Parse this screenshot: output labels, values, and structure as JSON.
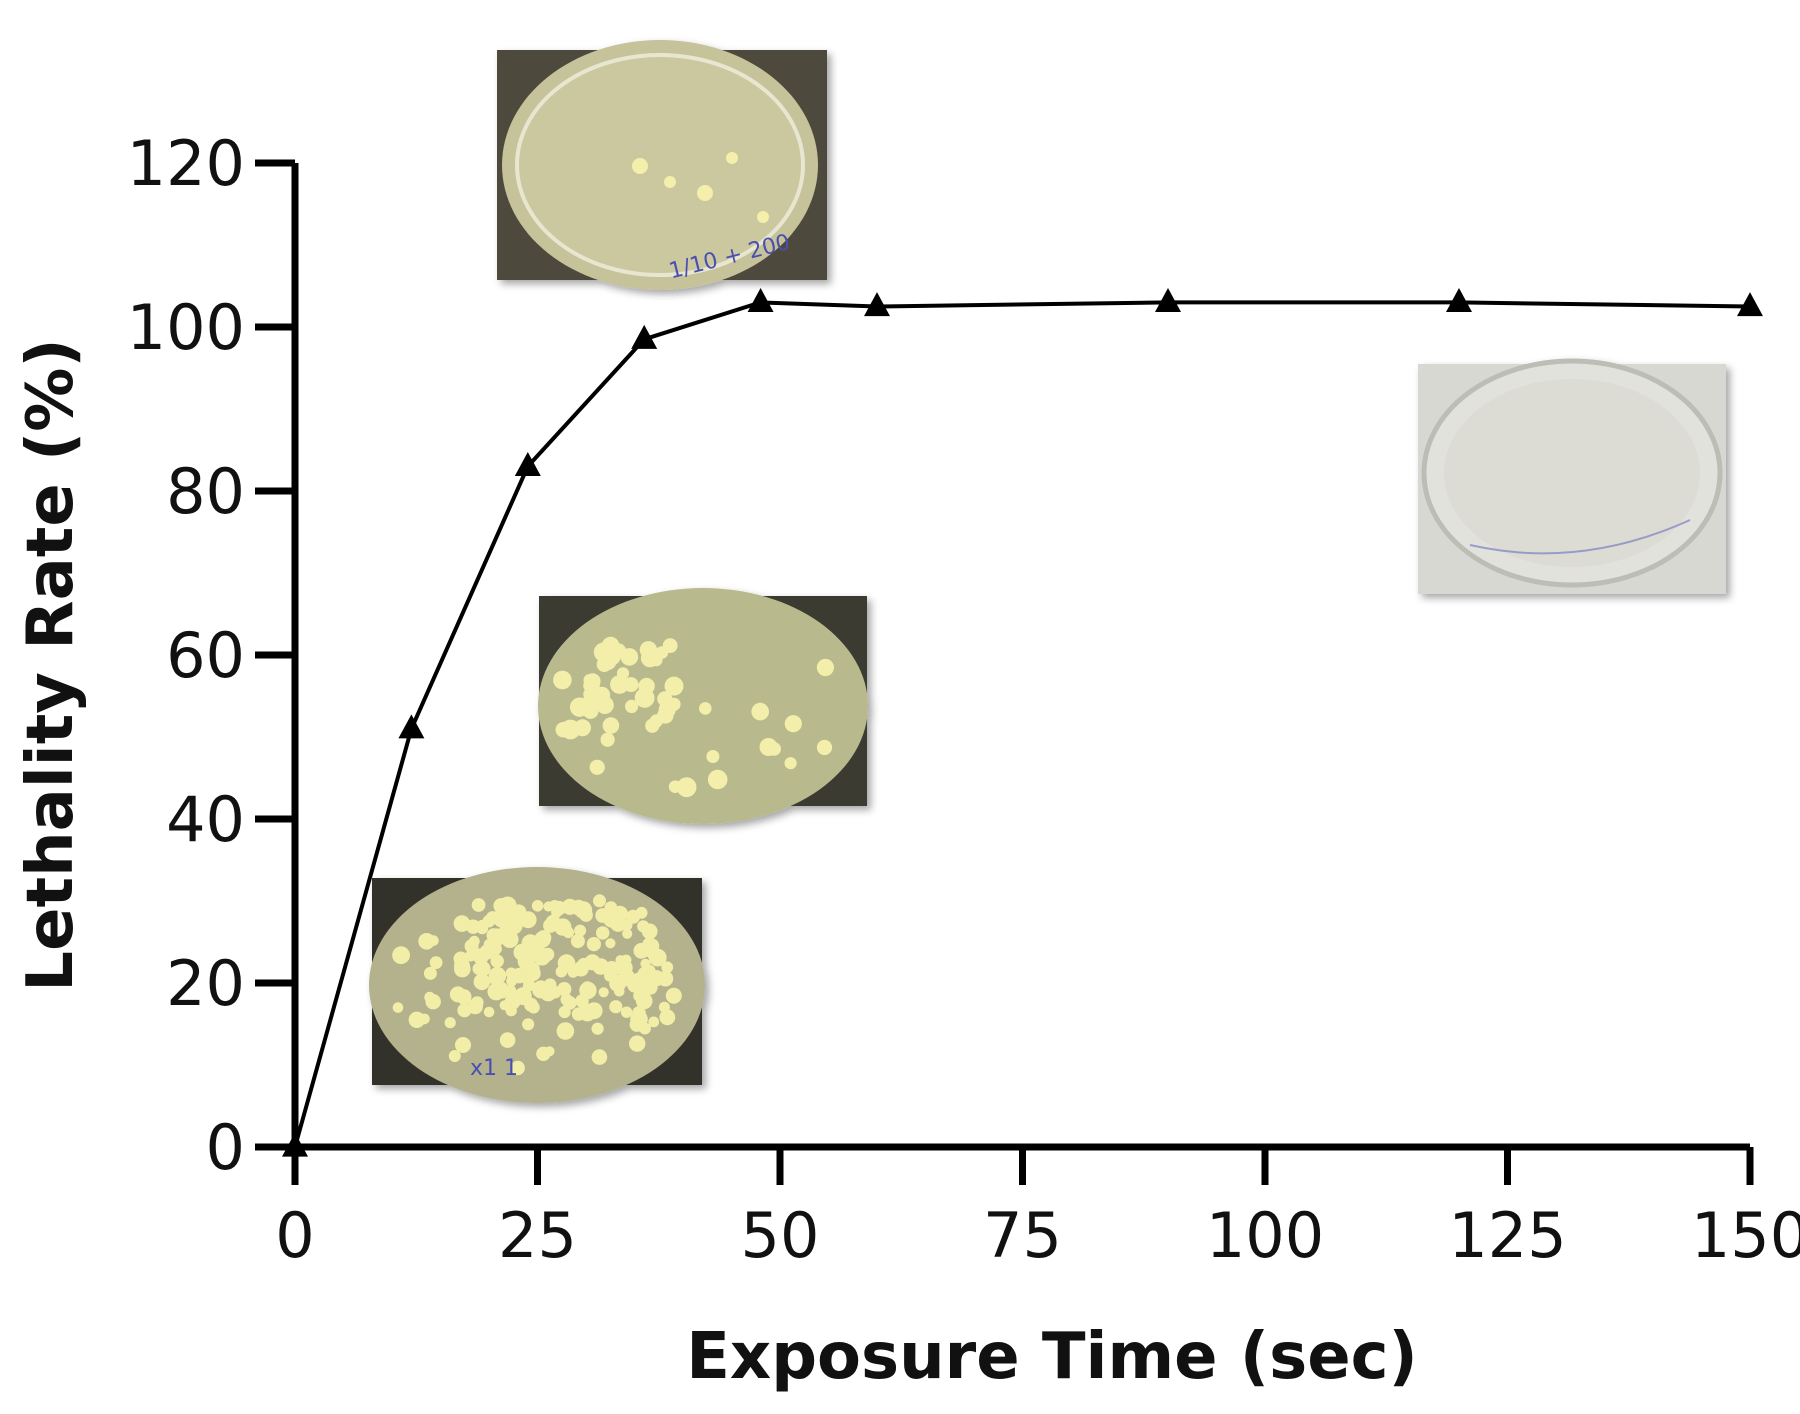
{
  "chart_data": {
    "type": "line",
    "title": "",
    "xlabel": "Exposure Time (sec)",
    "ylabel": "Lethality Rate (%)",
    "xlim": [
      0,
      150
    ],
    "ylim": [
      0,
      120
    ],
    "x_ticks": [
      0,
      25,
      50,
      75,
      100,
      125,
      150
    ],
    "y_ticks": [
      0,
      20,
      40,
      60,
      80,
      100,
      120
    ],
    "grid": false,
    "legend": "none",
    "marker": "triangle",
    "color": "#000000",
    "series": [
      {
        "x": [
          0,
          12,
          24,
          36,
          48,
          60,
          90,
          120,
          150
        ],
        "values": [
          0,
          51,
          83,
          98.5,
          103,
          102.5,
          103,
          103,
          102.5
        ]
      }
    ],
    "inset_images": [
      {
        "content": "petri dish with a few colonies",
        "handwriting": "1/10 + 200"
      },
      {
        "content": "petri dish with many colonies"
      },
      {
        "content": "petri dish densely covered with colonies",
        "handwriting": "x1 1"
      },
      {
        "content": "clear petri dish with no colonies"
      }
    ]
  }
}
